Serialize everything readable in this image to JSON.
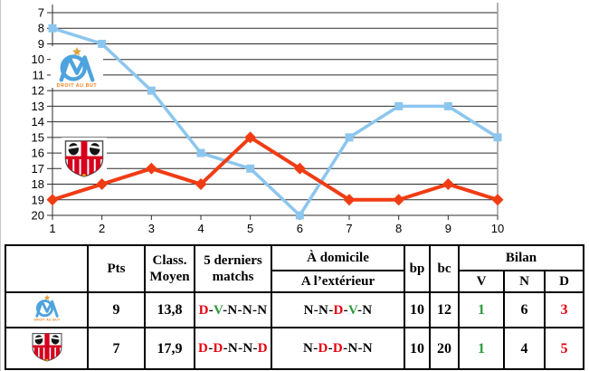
{
  "colors": {
    "win": "#2E9B3F",
    "loss": "#E8000F",
    "draw": "#000000",
    "blue_line": "#8CC6EE",
    "orange_line": "#F03C14",
    "grid": "#2B2B2B",
    "chart_right_border": "#999999"
  },
  "chart_data": {
    "type": "line",
    "title": "",
    "xlabel": "",
    "ylabel": "",
    "x": [
      1,
      2,
      3,
      4,
      5,
      6,
      7,
      8,
      9,
      10
    ],
    "x_tick_labels": [
      "1",
      "2",
      "3",
      "4",
      "5",
      "6",
      "7",
      "8",
      "9",
      "10"
    ],
    "ylim": [
      7,
      20
    ],
    "y_ticks": [
      7,
      8,
      9,
      10,
      11,
      12,
      13,
      14,
      15,
      16,
      17,
      18,
      19,
      20
    ],
    "y_inverted_ranking": true,
    "grid": true,
    "legend_position": "none (team crests drawn on plot)",
    "series": [
      {
        "name": "Olympique de Marseille",
        "marker": "square",
        "color": "#8CC6EE",
        "values": [
          8,
          9,
          12,
          16,
          17,
          20,
          15,
          13,
          13,
          15
        ]
      },
      {
        "name": "AC Ajaccio",
        "marker": "diamond",
        "color": "#F03C14",
        "values": [
          19,
          18,
          17,
          18,
          15,
          17,
          19,
          19,
          18,
          19
        ]
      }
    ]
  },
  "table": {
    "headers": {
      "team": "",
      "pts": "Pts",
      "class_moyen": "Class. Moyen",
      "last5": "5 derniers matchs",
      "home": "À domicile",
      "away": "A l’extérieur",
      "bp": "bp",
      "bc": "bc",
      "bilan": "Bilan",
      "v": "V",
      "n": "N",
      "d": "D"
    },
    "rows": [
      {
        "team": "Olympique de Marseille",
        "pts": "9",
        "class_moyen": "13,8",
        "last5": [
          [
            "D",
            "loss"
          ],
          [
            "V",
            "win"
          ],
          [
            "N",
            "draw"
          ],
          [
            "N",
            "draw"
          ],
          [
            "N",
            "draw"
          ]
        ],
        "home_away": [
          [
            "N",
            "draw"
          ],
          [
            "N",
            "draw"
          ],
          [
            "D",
            "loss"
          ],
          [
            "V",
            "win"
          ],
          [
            "N",
            "draw"
          ]
        ],
        "bp": "10",
        "bc": "12",
        "v": "1",
        "n": "6",
        "d": "3"
      },
      {
        "team": "AC Ajaccio",
        "pts": "7",
        "class_moyen": "17,9",
        "last5": [
          [
            "D",
            "loss"
          ],
          [
            "D",
            "loss"
          ],
          [
            "N",
            "draw"
          ],
          [
            "N",
            "draw"
          ],
          [
            "D",
            "loss"
          ]
        ],
        "home_away": [
          [
            "N",
            "draw"
          ],
          [
            "D",
            "loss"
          ],
          [
            "D",
            "loss"
          ],
          [
            "N",
            "draw"
          ],
          [
            "N",
            "draw"
          ]
        ],
        "bp": "10",
        "bc": "20",
        "v": "1",
        "n": "4",
        "d": "5"
      }
    ]
  }
}
